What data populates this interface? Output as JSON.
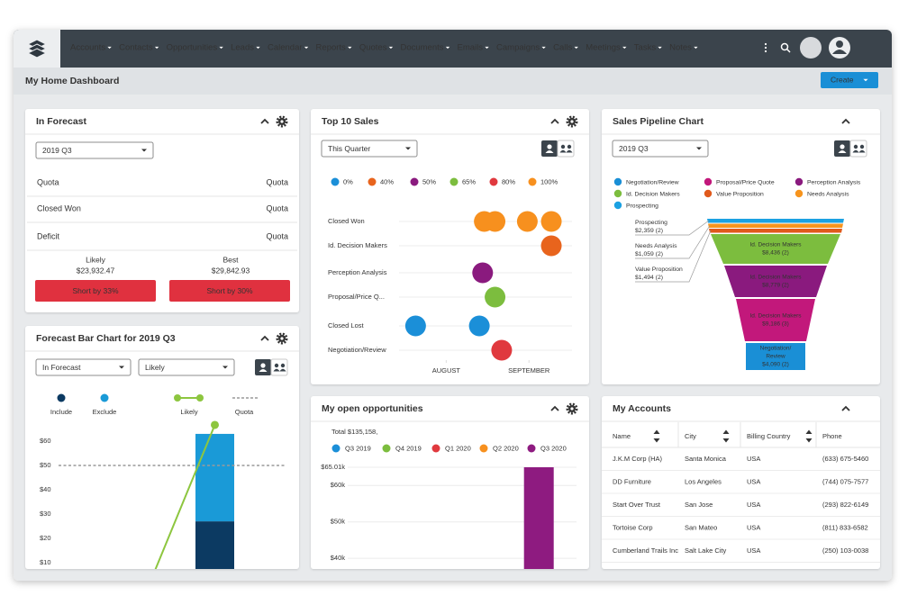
{
  "nav": {
    "menu": [
      "Accounts",
      "Contacts",
      "Opportunities",
      "Leads",
      "Calendar",
      "Reports",
      "Quotes",
      "Documents",
      "Emails",
      "Campaigns",
      "Calls",
      "Meetings",
      "Tasks",
      "Notes"
    ]
  },
  "header": {
    "title": "My Home Dashboard",
    "create": "Create"
  },
  "in_forecast": {
    "title": "In Forecast",
    "period": "2019 Q3",
    "rows": [
      [
        "Quota",
        "Quota"
      ],
      [
        "Closed Won",
        "Quota"
      ],
      [
        "Deficit",
        "Quota"
      ]
    ],
    "likely": {
      "label": "Likely",
      "amount": "$23,932.47",
      "status": "Short by 33%"
    },
    "best": {
      "label": "Best",
      "amount": "$29,842.93",
      "status": "Short by 30%"
    }
  },
  "forecast_bar": {
    "title": "Forecast Bar Chart for 2019 Q3",
    "filters": [
      "In Forecast",
      "Likely"
    ],
    "chart_data": {
      "type": "bar",
      "series": [
        {
          "name": "Include",
          "color": "#0c3a62",
          "values": [
            27
          ]
        },
        {
          "name": "Exclude",
          "color": "#1a9ad7",
          "values": [
            36
          ]
        }
      ],
      "lines": [
        {
          "name": "Likely",
          "color": "#8dc63f",
          "values": [
            66.7
          ]
        }
      ],
      "reference": {
        "name": "Quota",
        "value": 50
      },
      "ylim": [
        7.4,
        68.9
      ],
      "yticks": [
        {
          "value": 60,
          "label": "$60"
        },
        {
          "value": 50,
          "label": "$50"
        },
        {
          "value": 40,
          "label": "$40"
        },
        {
          "value": 30,
          "label": "$30"
        },
        {
          "value": 20,
          "label": "$20"
        },
        {
          "value": 10,
          "label": "$10"
        }
      ]
    }
  },
  "top_sales": {
    "title": "Top 10 Sales",
    "period": "This Quarter",
    "chart_data": {
      "type": "scatter",
      "categories": [
        "Closed Won",
        "Id. Decision Makers",
        "Perception Analysis",
        "Proposal/Price Q...",
        "Closed Lost",
        "Negotiation/Review"
      ],
      "xlim": [
        0.43,
        2.52
      ],
      "xticks": [
        {
          "value": 1,
          "label": "AUGUST"
        },
        {
          "value": 2,
          "label": "SEPTEMBER"
        }
      ],
      "series": [
        {
          "name": "0%",
          "color": "#1b8fd8",
          "x": [
            0.63,
            1.4
          ],
          "y": [
            "Closed Lost",
            "Closed Lost"
          ]
        },
        {
          "name": "40%",
          "color": "#e8641d",
          "x": [
            2.27
          ],
          "y": [
            "Id. Decision Makers"
          ]
        },
        {
          "name": "50%",
          "color": "#8a1a7e",
          "x": [
            1.44
          ],
          "y": [
            "Perception Analysis"
          ]
        },
        {
          "name": "65%",
          "color": "#7cbd3e",
          "x": [
            1.59
          ],
          "y": [
            "Proposal/Price Q..."
          ]
        },
        {
          "name": "80%",
          "color": "#e0393e",
          "x": [
            1.67
          ],
          "y": [
            "Negotiation/Review"
          ]
        },
        {
          "name": "100%",
          "color": "#f7901e",
          "x": [
            1.46,
            1.59,
            1.98,
            2.27
          ],
          "y": [
            "Closed Won",
            "Closed Won",
            "Closed Won",
            "Closed Won"
          ]
        }
      ]
    }
  },
  "open_opportunities": {
    "title": "My open opportunities",
    "total": "Total $135,158,",
    "chart_data": {
      "type": "bar",
      "series": [
        {
          "name": "Q3 2019",
          "color": "#1b8fd8",
          "values": [
            null
          ]
        },
        {
          "name": "Q4 2019",
          "color": "#7cbd3e",
          "values": [
            null
          ]
        },
        {
          "name": "Q1 2020",
          "color": "#e0393e",
          "values": [
            null
          ]
        },
        {
          "name": "Q2 2020",
          "color": "#f7901e",
          "values": [
            null
          ]
        },
        {
          "name": "Q3 2020",
          "color": "#8e1b80",
          "values": [
            65.01
          ]
        }
      ],
      "ylim": [
        37.07,
        65.01
      ],
      "yticks": [
        {
          "value": 65.01,
          "label": "$65.01k"
        },
        {
          "value": 60,
          "label": "$60k"
        },
        {
          "value": 50,
          "label": "$50k"
        },
        {
          "value": 40,
          "label": "$40k"
        }
      ]
    }
  },
  "pipeline": {
    "title": "Sales Pipeline Chart",
    "period": "2019 Q3",
    "legend": [
      {
        "name": "Negotiation/Review",
        "color": "#1a8fd6"
      },
      {
        "name": "Proposal/Price Quote",
        "color": "#c2187b"
      },
      {
        "name": "Perception Analysis",
        "color": "#8a1a7e"
      },
      {
        "name": "Id. Decision Makers",
        "color": "#7cbd3e"
      },
      {
        "name": "Value Proposition",
        "color": "#e05a1c"
      },
      {
        "name": "Needs Analysis",
        "color": "#f7941d"
      },
      {
        "name": "Prospecting",
        "color": "#1ba1e2"
      }
    ],
    "outside_labels": [
      {
        "name": "Prospecting",
        "amount": "$2,359 (2)",
        "color": "#1ba1e2"
      },
      {
        "name": "Needs Analysis",
        "amount": "$1,059 (2)",
        "color": "#f7941d"
      },
      {
        "name": "Value Proposition",
        "amount": "$1,494 (2)",
        "color": "#e05a1c"
      }
    ],
    "segments": [
      {
        "lines": [
          "Id. Decision Makers"
        ],
        "amount": "$8,436 (2)",
        "color": "#7cbd3e"
      },
      {
        "lines": [
          "Id. Decision Makers"
        ],
        "amount": "$8,779 (2)",
        "color": "#8a1a7e"
      },
      {
        "lines": [
          "Id. Decision Makers"
        ],
        "amount": "$9,186 (3)",
        "color": "#c2187b"
      },
      {
        "lines": [
          "Negotiation/",
          "Review"
        ],
        "amount": "$4,090 (2)",
        "color": "#1a8fd6"
      }
    ]
  },
  "accounts": {
    "title": "My Accounts",
    "columns": [
      "Name",
      "City",
      "Billing Country",
      "Phone"
    ],
    "rows": [
      [
        "J.K.M Corp (HA)",
        "Santa Monica",
        "USA",
        "(633) 675-5460"
      ],
      [
        "DD Furniture",
        "Los Angeles",
        "USA",
        "(744) 075-7577"
      ],
      [
        "Start Over Trust",
        "San Jose",
        "USA",
        "(293) 822-6149"
      ],
      [
        "Tortoise Corp",
        "San Mateo",
        "USA",
        "(811) 833-6582"
      ],
      [
        "Cumberland Trails Inc",
        "Salt Lake City",
        "USA",
        "(250) 103-0038"
      ]
    ]
  }
}
